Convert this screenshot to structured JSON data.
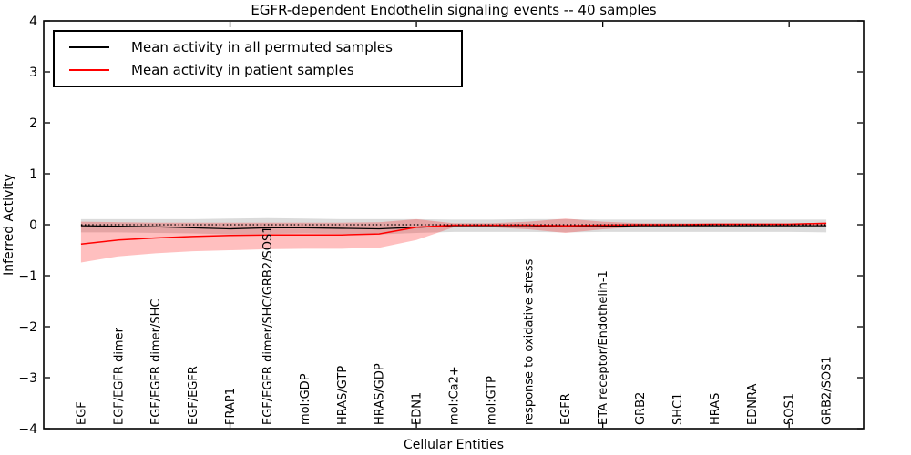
{
  "title": "EGFR-dependent Endothelin signaling events -- 40 samples",
  "legend": {
    "items": [
      {
        "label": "Mean activity in all permuted samples",
        "color": "#000000"
      },
      {
        "label": "Mean activity in patient samples",
        "color": "#ff0000"
      }
    ]
  },
  "chart_data": {
    "type": "line",
    "title": "EGFR-dependent Endothelin signaling events -- 40 samples",
    "xlabel": "Cellular Entities",
    "ylabel": "Inferred Activity",
    "ylim": [
      -4,
      4
    ],
    "yticks": [
      4,
      3,
      2,
      1,
      0,
      -1,
      -2,
      -3,
      -4
    ],
    "grid": false,
    "legend_position": "upper left",
    "zero_reference_line": 0,
    "x_inner_tick_positions": [
      5,
      10,
      15,
      20
    ],
    "categories": [
      "EGF",
      "EGF/EGFR dimer",
      "EGF/EGFR dimer/SHC",
      "EGF/EGFR",
      "FRAP1",
      "EGF/EGFR dimer/SHC/GRB2/SOS1",
      "mol:GDP",
      "HRAS/GTP",
      "HRAS/GDP",
      "EDN1",
      "mol:Ca2+",
      "mol:GTP",
      "response to oxidative stress",
      "EGFR",
      "ETA receptor/Endothelin-1",
      "GRB2",
      "SHC1",
      "HRAS",
      "EDNRA",
      "SOS1",
      "GRB2/SOS1"
    ],
    "series": [
      {
        "name": "Mean activity in all permuted samples",
        "color": "#000000",
        "line_width": 1.3,
        "values": [
          -0.02,
          -0.03,
          -0.04,
          -0.06,
          -0.08,
          -0.06,
          -0.06,
          -0.07,
          -0.08,
          -0.05,
          -0.02,
          -0.02,
          -0.02,
          -0.04,
          -0.03,
          -0.02,
          -0.02,
          -0.02,
          -0.02,
          -0.02,
          -0.02
        ],
        "band_lo": [
          -0.15,
          -0.15,
          -0.16,
          -0.17,
          -0.19,
          -0.18,
          -0.17,
          -0.18,
          -0.19,
          -0.16,
          -0.14,
          -0.14,
          -0.14,
          -0.15,
          -0.14,
          -0.14,
          -0.14,
          -0.14,
          -0.14,
          -0.14,
          -0.15
        ],
        "band_hi": [
          0.11,
          0.11,
          0.11,
          0.11,
          0.12,
          0.13,
          0.12,
          0.11,
          0.11,
          0.11,
          0.1,
          0.1,
          0.11,
          0.11,
          0.1,
          0.1,
          0.1,
          0.1,
          0.1,
          0.1,
          0.1
        ],
        "band_color": "rgba(0,0,0,0.14)"
      },
      {
        "name": "Mean activity in patient samples",
        "color": "#ff0000",
        "line_width": 1.5,
        "values": [
          -0.38,
          -0.3,
          -0.26,
          -0.23,
          -0.21,
          -0.2,
          -0.2,
          -0.2,
          -0.18,
          -0.05,
          -0.01,
          -0.01,
          -0.01,
          -0.02,
          -0.01,
          0.0,
          0.0,
          0.01,
          0.01,
          0.01,
          0.03
        ],
        "band_lo": [
          -0.74,
          -0.62,
          -0.56,
          -0.52,
          -0.5,
          -0.48,
          -0.47,
          -0.47,
          -0.45,
          -0.3,
          -0.05,
          -0.05,
          -0.09,
          -0.16,
          -0.09,
          -0.04,
          -0.03,
          -0.03,
          -0.03,
          -0.03,
          -0.03
        ],
        "band_hi": [
          0.06,
          0.05,
          0.04,
          0.04,
          0.04,
          0.04,
          0.04,
          0.04,
          0.05,
          0.11,
          0.03,
          0.03,
          0.06,
          0.12,
          0.06,
          0.03,
          0.03,
          0.03,
          0.03,
          0.03,
          0.04
        ],
        "band_color": "rgba(255,0,0,0.25)"
      }
    ]
  }
}
